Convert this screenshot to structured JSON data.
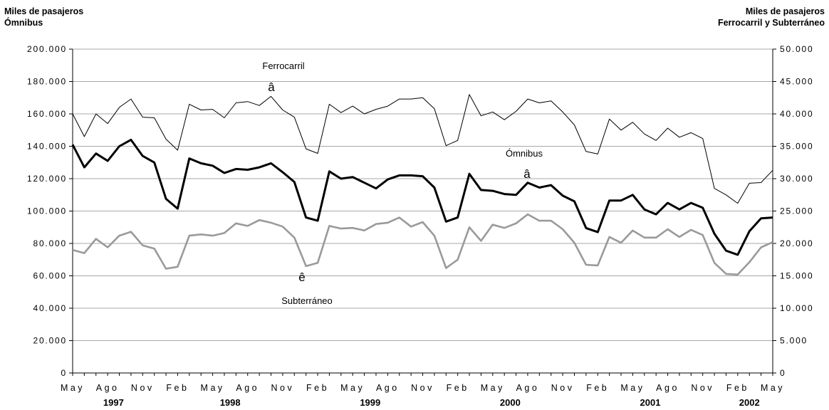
{
  "chart_data": {
    "type": "line",
    "title": "",
    "left_axis": {
      "label_line1": "Miles de pasajeros",
      "label_line2": "Ómnibus",
      "ylim": [
        0,
        200000
      ],
      "tick_labels": [
        "0",
        "20.000",
        "40.000",
        "60.000",
        "80.000",
        "100.000",
        "120.000",
        "140.000",
        "160.000",
        "180.000",
        "200.000"
      ]
    },
    "right_axis": {
      "label_line1": "Miles de pasajeros",
      "label_line2": "Ferrocarril y Subterráneo",
      "ylim": [
        0,
        50000
      ],
      "tick_labels": [
        "0",
        "5.000",
        "10.000",
        "15.000",
        "20.000",
        "25.000",
        "30.000",
        "35.000",
        "40.000",
        "45.000",
        "50.000"
      ]
    },
    "x_tick_labels": [
      "May",
      "Ago",
      "Nov",
      "Feb",
      "May",
      "Ago",
      "Nov",
      "Feb",
      "May",
      "Ago",
      "Nov",
      "Feb",
      "May",
      "Ago",
      "Nov",
      "Feb",
      "May",
      "Ago",
      "Nov",
      "Feb",
      "May"
    ],
    "year_labels": [
      "1997",
      "1998",
      "1999",
      "2000",
      "2001",
      "2002"
    ],
    "grid": "horizontal",
    "series": [
      {
        "name": "Ómnibus",
        "axis": "left",
        "color": "#000000",
        "values": [
          141000,
          127000,
          135500,
          131000,
          140000,
          144000,
          134000,
          130000,
          107500,
          101500,
          132500,
          129500,
          128000,
          123500,
          126000,
          125500,
          127000,
          129500,
          124000,
          118000,
          96000,
          94000,
          124500,
          120000,
          121000,
          117500,
          114000,
          119500,
          122000,
          122000,
          121500,
          114500,
          93500,
          96000,
          123000,
          113000,
          112500,
          110500,
          110000,
          117500,
          114500,
          116000,
          109500,
          106000,
          89500,
          87000,
          106500,
          106500,
          110000,
          101000,
          98000,
          105000,
          101000,
          105000,
          102000,
          86000,
          75500,
          73000,
          87500,
          95500,
          96000
        ]
      },
      {
        "name": "Ferrocarril",
        "axis": "right",
        "color": "#000000",
        "values": [
          40000,
          36500,
          40000,
          38500,
          41000,
          42300,
          39500,
          39400,
          36100,
          34400,
          41500,
          40600,
          40700,
          39400,
          41700,
          41900,
          41300,
          42700,
          40600,
          39500,
          34600,
          33900,
          41500,
          40200,
          41200,
          40000,
          40700,
          41200,
          42300,
          42300,
          42500,
          40800,
          35100,
          35900,
          43000,
          39700,
          40300,
          39100,
          40400,
          42300,
          41700,
          42000,
          40300,
          38300,
          34200,
          33800,
          39200,
          37500,
          38700,
          36900,
          35900,
          37800,
          36400,
          37100,
          36200,
          28500,
          27500,
          26200,
          29300,
          29400,
          31300
        ]
      },
      {
        "name": "Subterráneo",
        "axis": "right",
        "color": "#9a9a9a",
        "values": [
          19000,
          18500,
          20700,
          19400,
          21200,
          21800,
          19700,
          19200,
          16100,
          16400,
          21200,
          21400,
          21200,
          21600,
          23100,
          22700,
          23600,
          23200,
          22600,
          20900,
          16500,
          17000,
          22700,
          22300,
          22400,
          22000,
          23000,
          23200,
          24000,
          22600,
          23300,
          21200,
          16200,
          17500,
          22500,
          20400,
          22900,
          22400,
          23100,
          24500,
          23500,
          23500,
          22200,
          20100,
          16700,
          16600,
          21000,
          20100,
          22000,
          20900,
          20900,
          22200,
          21000,
          22100,
          21300,
          17000,
          15300,
          15200,
          17100,
          19400,
          20200
        ]
      }
    ],
    "annotations": [
      {
        "text": "Ferrocarril",
        "series": "Ferrocarril",
        "marker": "â"
      },
      {
        "text": "Ómnibus",
        "series": "Ómnibus",
        "marker": "â"
      },
      {
        "text": "Subterráneo",
        "series": "Subterráneo",
        "marker": "ê"
      }
    ]
  }
}
